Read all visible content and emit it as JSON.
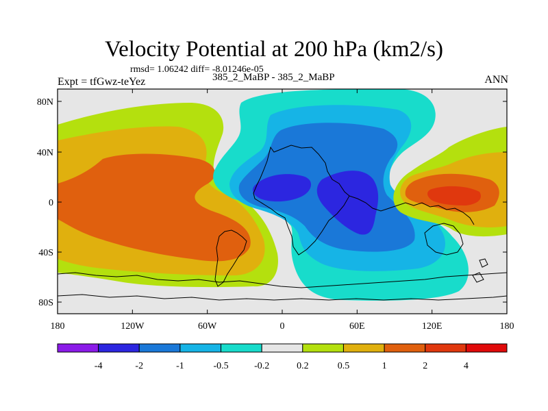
{
  "header": {
    "title": "Velocity Potential at 200 hPa (km2/s)",
    "stats": "rmsd= 1.06242 diff= -8.01246e-05",
    "experiment": "Expt = tfGwz-teYez",
    "case": "385_2_MaBP - 385_2_MaBP",
    "season": "ANN"
  },
  "map": {
    "background_color": "#e6e6e6",
    "lat_ticks": [
      "80N",
      "40N",
      "0",
      "40S",
      "80S"
    ],
    "lon_ticks": [
      "180",
      "120W",
      "60W",
      "0",
      "60E",
      "120E",
      "180"
    ]
  },
  "colorbar": {
    "colors": [
      "#8b1be8",
      "#2c26e0",
      "#1a78d8",
      "#16b4e6",
      "#18dccb",
      "#e6e6e6",
      "#b4e00e",
      "#e0b00e",
      "#e0600e",
      "#e0380e",
      "#e00a0a"
    ],
    "labels": [
      "-4",
      "-2",
      "-1",
      "-0.5",
      "-0.2",
      "0.2",
      "0.5",
      "1",
      "2",
      "4"
    ]
  }
}
